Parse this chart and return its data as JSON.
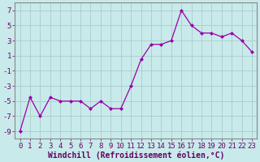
{
  "x": [
    0,
    1,
    2,
    3,
    4,
    5,
    6,
    7,
    8,
    9,
    10,
    11,
    12,
    13,
    14,
    15,
    16,
    17,
    18,
    19,
    20,
    21,
    22,
    23
  ],
  "y": [
    -9.0,
    -4.5,
    -7.0,
    -4.5,
    -5.0,
    -5.0,
    -5.0,
    -6.0,
    -5.0,
    -6.0,
    -6.0,
    -3.0,
    0.5,
    2.5,
    2.5,
    3.0,
    7.0,
    5.0,
    4.0,
    4.0,
    3.5,
    4.0,
    3.0,
    1.5
  ],
  "line_color": "#9900aa",
  "marker": "D",
  "markersize": 2.0,
  "linewidth": 0.9,
  "xlabel": "Windchill (Refroidissement éolien,°C)",
  "xlabel_fontsize": 7,
  "background_color": "#c8eaea",
  "grid_color": "#aacccc",
  "ylim": [
    -10,
    8
  ],
  "xlim": [
    -0.5,
    23.5
  ],
  "yticks": [
    -9,
    -7,
    -5,
    -3,
    -1,
    1,
    3,
    5,
    7
  ],
  "xtick_labels": [
    "0",
    "1",
    "2",
    "3",
    "4",
    "5",
    "6",
    "7",
    "8",
    "9",
    "10",
    "11",
    "12",
    "13",
    "14",
    "15",
    "16",
    "17",
    "18",
    "19",
    "20",
    "21",
    "22",
    "23"
  ],
  "tick_fontsize": 6.5,
  "spine_color": "#888888"
}
